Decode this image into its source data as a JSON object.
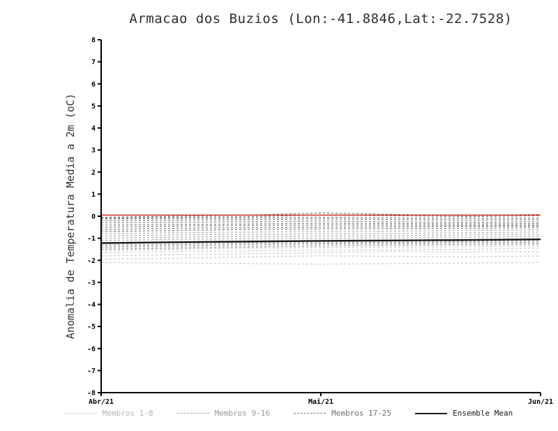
{
  "page": {
    "background": "#ffffff"
  },
  "chart_data": {
    "type": "line",
    "title": "Armacao dos Buzios (Lon:-41.8846,Lat:-22.7528)",
    "ylabel": "Anomalia de Temperatura Media a 2m (oC)",
    "xlabel": "",
    "ylim": [
      -8,
      8
    ],
    "ytick_step": 1,
    "xlim": [
      0,
      2
    ],
    "x": [
      0,
      0.333,
      0.667,
      1.0,
      1.333,
      1.667,
      2.0
    ],
    "xticks": [
      {
        "value": 0,
        "label": "Abr/21"
      },
      {
        "value": 1,
        "label": "Mai/21"
      },
      {
        "value": 2,
        "label": "Jun/21"
      }
    ],
    "grid": false,
    "legend_position": "bottom",
    "axis_color": "#000000",
    "reference_line": {
      "name": "zero-reference-line",
      "color": "#d23b2e",
      "value": 0.05,
      "style": "solid"
    },
    "groups": [
      {
        "name": "Membros 1-8",
        "color": "#c9c9c9",
        "dash": "3,3",
        "members": [
          [
            -2.1,
            -2.12,
            -2.15,
            -2.18,
            -2.15,
            -2.12,
            -2.1
          ],
          [
            -1.95,
            -1.9,
            -1.85,
            -1.8,
            -1.82,
            -1.85,
            -1.8
          ],
          [
            -1.8,
            -1.75,
            -1.7,
            -1.65,
            -1.6,
            -1.62,
            -1.6
          ],
          [
            -1.65,
            -1.6,
            -1.58,
            -1.55,
            -1.52,
            -1.5,
            -1.45
          ],
          [
            -1.55,
            -1.5,
            -1.45,
            -1.42,
            -1.4,
            -1.38,
            -1.35
          ],
          [
            -1.45,
            -1.42,
            -1.38,
            -1.35,
            -1.32,
            -1.3,
            -1.28
          ],
          [
            -1.35,
            -1.32,
            -1.3,
            -1.28,
            -1.25,
            -1.22,
            -1.2
          ],
          [
            -1.25,
            -1.22,
            -1.2,
            -1.18,
            -1.15,
            -1.12,
            -1.1
          ]
        ]
      },
      {
        "name": "Membros 9-16",
        "color": "#a8a8a8",
        "dash": "3,3",
        "members": [
          [
            -1.5,
            -1.45,
            -1.4,
            -1.35,
            -1.3,
            -1.28,
            -1.25
          ],
          [
            -1.4,
            -1.35,
            -1.3,
            -1.25,
            -1.22,
            -1.2,
            -1.18
          ],
          [
            -1.3,
            -1.28,
            -1.25,
            -1.2,
            -1.18,
            -1.15,
            -1.12
          ],
          [
            -1.2,
            -1.15,
            -1.12,
            -1.1,
            -1.08,
            -1.05,
            -1.02
          ],
          [
            -1.1,
            -1.05,
            -1.02,
            -1.0,
            -0.98,
            -0.95,
            -0.92
          ],
          [
            -1.0,
            -0.95,
            -0.92,
            -0.9,
            -0.88,
            -0.85,
            -0.82
          ],
          [
            -0.9,
            -0.85,
            -0.82,
            -0.8,
            -0.78,
            -0.75,
            -0.72
          ],
          [
            -0.8,
            -0.75,
            -0.72,
            -0.7,
            -0.68,
            -0.65,
            -0.62
          ]
        ]
      },
      {
        "name": "Membros 17-25",
        "color": "#7a7a7a",
        "dash": "3,3",
        "members": [
          [
            -0.7,
            -0.65,
            -0.6,
            -0.58,
            -0.56,
            -0.55,
            -0.52
          ],
          [
            -0.6,
            -0.55,
            -0.52,
            -0.5,
            -0.48,
            -0.46,
            -0.45
          ],
          [
            -0.5,
            -0.45,
            -0.42,
            -0.4,
            -0.4,
            -0.42,
            -0.4
          ],
          [
            -0.4,
            -0.38,
            -0.35,
            -0.32,
            -0.33,
            -0.35,
            -0.33
          ],
          [
            -0.3,
            -0.28,
            -0.25,
            -0.22,
            -0.25,
            -0.28,
            -0.25
          ],
          [
            -0.2,
            -0.18,
            -0.15,
            -0.12,
            -0.15,
            -0.18,
            -0.15
          ],
          [
            -0.12,
            -0.1,
            -0.08,
            -0.05,
            -0.08,
            -0.1,
            -0.08
          ],
          [
            -0.08,
            -0.05,
            -0.02,
            0.05,
            0.02,
            -0.02,
            0.02
          ],
          [
            -0.05,
            0.0,
            0.05,
            0.15,
            0.08,
            0.02,
            0.08
          ]
        ]
      }
    ],
    "mean": {
      "name": "Ensemble Mean",
      "color": "#1a1a1a",
      "values": [
        -1.22,
        -1.18,
        -1.15,
        -1.12,
        -1.1,
        -1.08,
        -1.05
      ]
    },
    "legend": [
      {
        "label": "Membros 1-8",
        "color": "#c9c9c9",
        "dash": true,
        "text_color": "#b4b4b4"
      },
      {
        "label": "Membros 9-16",
        "color": "#a8a8a8",
        "dash": true,
        "text_color": "#989898"
      },
      {
        "label": "Membros 17-25",
        "color": "#7a7a7a",
        "dash": true,
        "text_color": "#6e6e6e"
      },
      {
        "label": "Ensemble Mean",
        "color": "#1a1a1a",
        "dash": false,
        "text_color": "#1a1a1a"
      }
    ]
  }
}
